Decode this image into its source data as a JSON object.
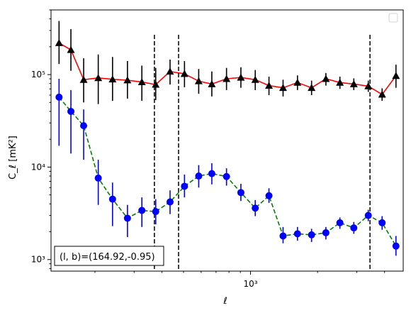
{
  "chart_data": {
    "type": "scatter",
    "xlabel": "ℓ",
    "ylabel": "C_ℓ  [mK²]",
    "xscale": "log",
    "yscale": "log",
    "xlim": [
      127,
      4850
    ],
    "ylim": [
      750,
      500000
    ],
    "x_tick_labels": [
      {
        "value": 1000,
        "label": "10³"
      }
    ],
    "y_tick_labels": [
      {
        "value": 1000,
        "label": "10³"
      },
      {
        "value": 10000,
        "label": "10⁴"
      },
      {
        "value": 100000,
        "label": "10⁵"
      }
    ],
    "vlines": [
      370,
      475,
      3440
    ],
    "annotation": "(l, b)=(164.92,-0.95)",
    "legend": "top-right, empty",
    "series": [
      {
        "marker": "triangle",
        "marker_color": "#000000",
        "line_color": "#ff0000",
        "line_style": "solid",
        "errorbar_color": "#000000",
        "points": [
          {
            "x": 138,
            "y": 220000,
            "lo": 130000,
            "hi": 380000
          },
          {
            "x": 156,
            "y": 185000,
            "lo": 110000,
            "hi": 310000
          },
          {
            "x": 178,
            "y": 88000,
            "lo": 50000,
            "hi": 150000
          },
          {
            "x": 207,
            "y": 92000,
            "lo": 48000,
            "hi": 165000
          },
          {
            "x": 240,
            "y": 89000,
            "lo": 52000,
            "hi": 155000
          },
          {
            "x": 280,
            "y": 87000,
            "lo": 55000,
            "hi": 140000
          },
          {
            "x": 325,
            "y": 83000,
            "lo": 52000,
            "hi": 125000
          },
          {
            "x": 375,
            "y": 78000,
            "lo": 53000,
            "hi": 118000
          },
          {
            "x": 435,
            "y": 108000,
            "lo": 78000,
            "hi": 145000
          },
          {
            "x": 505,
            "y": 102000,
            "lo": 73000,
            "hi": 140000
          },
          {
            "x": 585,
            "y": 85000,
            "lo": 62000,
            "hi": 115000
          },
          {
            "x": 670,
            "y": 79000,
            "lo": 58000,
            "hi": 108000
          },
          {
            "x": 780,
            "y": 90000,
            "lo": 68000,
            "hi": 118000
          },
          {
            "x": 905,
            "y": 93000,
            "lo": 72000,
            "hi": 120000
          },
          {
            "x": 1050,
            "y": 88000,
            "lo": 68000,
            "hi": 112000
          },
          {
            "x": 1210,
            "y": 76000,
            "lo": 60000,
            "hi": 95000
          },
          {
            "x": 1400,
            "y": 72000,
            "lo": 58000,
            "hi": 88000
          },
          {
            "x": 1625,
            "y": 82000,
            "lo": 68000,
            "hi": 98000
          },
          {
            "x": 1880,
            "y": 72000,
            "lo": 60000,
            "hi": 86000
          },
          {
            "x": 2180,
            "y": 90000,
            "lo": 76000,
            "hi": 104000
          },
          {
            "x": 2520,
            "y": 82000,
            "lo": 70000,
            "hi": 95000
          },
          {
            "x": 2910,
            "y": 79000,
            "lo": 68000,
            "hi": 91000
          },
          {
            "x": 3380,
            "y": 75000,
            "lo": 65000,
            "hi": 86000
          },
          {
            "x": 3900,
            "y": 61000,
            "lo": 52000,
            "hi": 71000
          },
          {
            "x": 4500,
            "y": 97000,
            "lo": 72000,
            "hi": 128000
          }
        ]
      },
      {
        "marker": "circle",
        "marker_color": "#0000ff",
        "line_color": "#008000",
        "line_style": "dashed",
        "errorbar_color": "#0000ff",
        "points": [
          {
            "x": 138,
            "y": 57000,
            "lo": 17000,
            "hi": 90000
          },
          {
            "x": 156,
            "y": 40000,
            "lo": 14000,
            "hi": 68000
          },
          {
            "x": 178,
            "y": 28000,
            "lo": 12000,
            "hi": 42000
          },
          {
            "x": 207,
            "y": 7600,
            "lo": 3900,
            "hi": 12000
          },
          {
            "x": 240,
            "y": 4500,
            "lo": 2300,
            "hi": 6800
          },
          {
            "x": 280,
            "y": 2800,
            "lo": 1750,
            "hi": 3900
          },
          {
            "x": 325,
            "y": 3400,
            "lo": 2250,
            "hi": 4700
          },
          {
            "x": 375,
            "y": 3300,
            "lo": 2400,
            "hi": 4500
          },
          {
            "x": 435,
            "y": 4200,
            "lo": 3100,
            "hi": 5600
          },
          {
            "x": 505,
            "y": 6200,
            "lo": 4700,
            "hi": 8300
          },
          {
            "x": 585,
            "y": 8000,
            "lo": 6000,
            "hi": 10500
          },
          {
            "x": 670,
            "y": 8500,
            "lo": 6500,
            "hi": 11000
          },
          {
            "x": 780,
            "y": 7900,
            "lo": 6300,
            "hi": 9700
          },
          {
            "x": 905,
            "y": 5300,
            "lo": 4300,
            "hi": 6600
          },
          {
            "x": 1050,
            "y": 3600,
            "lo": 2950,
            "hi": 4400
          },
          {
            "x": 1210,
            "y": 4900,
            "lo": 4100,
            "hi": 5900
          },
          {
            "x": 1400,
            "y": 1800,
            "lo": 1500,
            "hi": 2250
          },
          {
            "x": 1625,
            "y": 1900,
            "lo": 1600,
            "hi": 2250
          },
          {
            "x": 1880,
            "y": 1850,
            "lo": 1550,
            "hi": 2150
          },
          {
            "x": 2180,
            "y": 1950,
            "lo": 1650,
            "hi": 2250
          },
          {
            "x": 2520,
            "y": 2500,
            "lo": 2150,
            "hi": 2850
          },
          {
            "x": 2910,
            "y": 2200,
            "lo": 1900,
            "hi": 2550
          },
          {
            "x": 3380,
            "y": 3000,
            "lo": 2600,
            "hi": 3450
          },
          {
            "x": 3900,
            "y": 2500,
            "lo": 2100,
            "hi": 2950
          },
          {
            "x": 4500,
            "y": 1400,
            "lo": 1100,
            "hi": 1800
          }
        ]
      }
    ]
  }
}
